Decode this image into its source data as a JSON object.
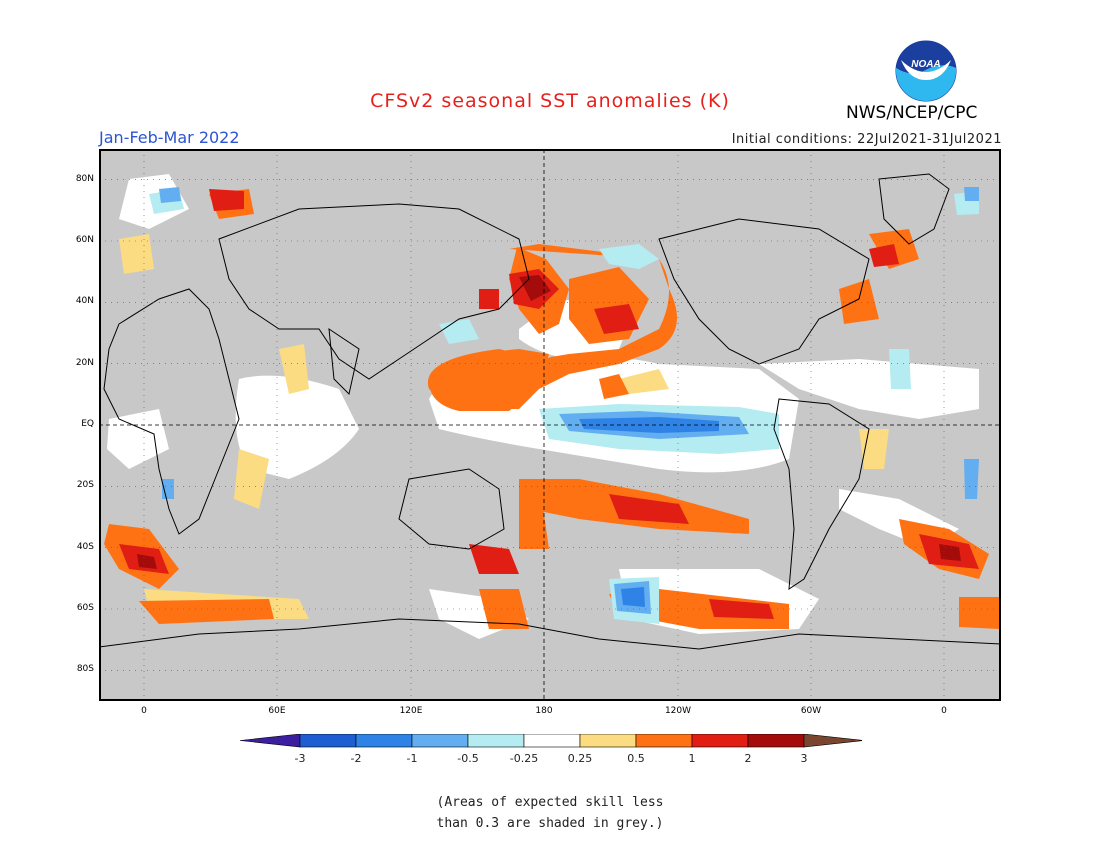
{
  "header": {
    "title": "CFSv2 seasonal SST anomalies (K)",
    "season": "Jan-Feb-Mar 2022",
    "initial_conditions": "Initial conditions: 22Jul2021-31Jul2021",
    "agency": "NWS/NCEP/CPC",
    "logo_text": "NOAA"
  },
  "colors": {
    "title": "#e8201c",
    "season": "#2a55d4",
    "land": "#c8c8c8"
  },
  "map": {
    "lat_labels": [
      "80N",
      "60N",
      "40N",
      "20N",
      "EQ",
      "20S",
      "40S",
      "60S",
      "80S"
    ],
    "lon_labels": [
      "0",
      "60E",
      "120E",
      "180",
      "120W",
      "60W",
      "0"
    ]
  },
  "legend": {
    "tick_labels": [
      "-3",
      "-2",
      "-1",
      "-0.5",
      "-0.25",
      "0.25",
      "0.5",
      "1",
      "2",
      "3"
    ],
    "bins": [
      {
        "color": "#3c1ea0"
      },
      {
        "color": "#1e5ed0"
      },
      {
        "color": "#2f83e6"
      },
      {
        "color": "#62aef0"
      },
      {
        "color": "#b4ecf2"
      },
      {
        "color": "#ffffff"
      },
      {
        "color": "#fbdc82"
      },
      {
        "color": "#ff7214"
      },
      {
        "color": "#e01e14"
      },
      {
        "color": "#a40c0c"
      },
      {
        "color": "#7a4630"
      }
    ]
  },
  "note": {
    "line1": "(Areas of expected skill less",
    "line2": "than 0.3 are shaded in grey.)"
  }
}
